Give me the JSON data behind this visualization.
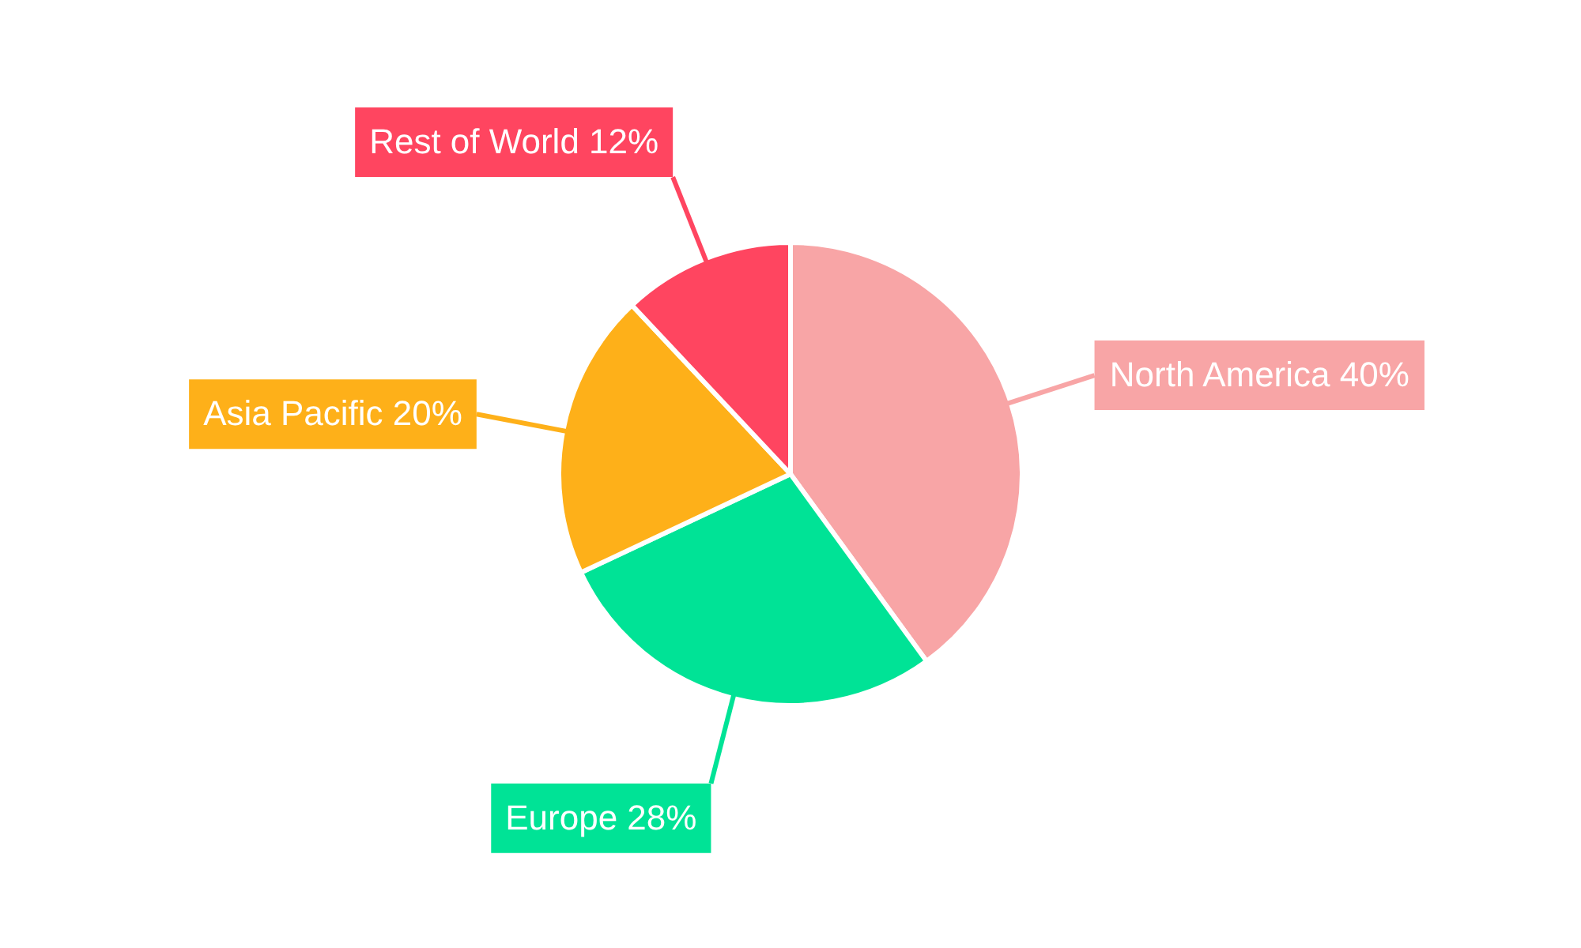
{
  "chart_data": {
    "type": "pie",
    "categories": [
      "North America",
      "Europe",
      "Asia Pacific",
      "Rest of World"
    ],
    "values": [
      40,
      28,
      20,
      12
    ],
    "value_labels": [
      "40%",
      "28%",
      "20%",
      "12%"
    ],
    "colors": [
      "#f8a5a6",
      "#00e396",
      "#feb019",
      "#ff4560"
    ],
    "legend": false
  }
}
